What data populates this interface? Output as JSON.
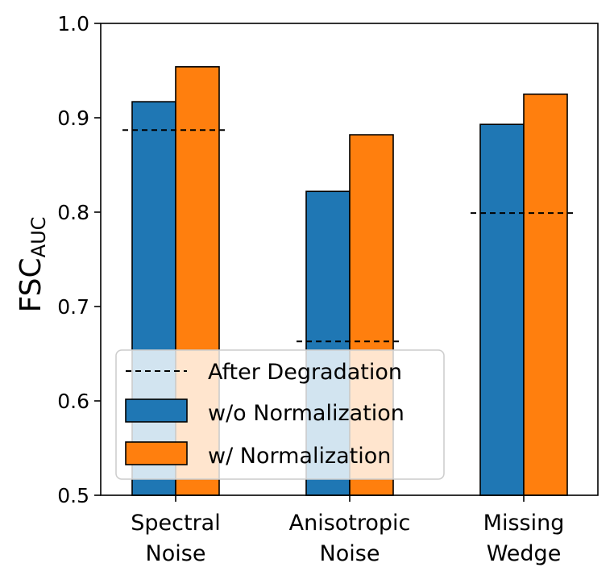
{
  "chart_data": {
    "type": "bar",
    "categories": [
      [
        "Spectral",
        "Noise"
      ],
      [
        "Anisotropic",
        "Noise"
      ],
      [
        "Missing",
        "Wedge"
      ]
    ],
    "series": [
      {
        "name": "w/o Normalization",
        "color": "#1f77b4",
        "values": [
          0.917,
          0.822,
          0.893
        ]
      },
      {
        "name": "w/ Normalization",
        "color": "#ff7f0e",
        "values": [
          0.954,
          0.882,
          0.925
        ]
      }
    ],
    "reference": {
      "name": "After Degradation",
      "style": "dashed",
      "color": "#000000",
      "values": [
        0.887,
        0.663,
        0.799
      ]
    },
    "ylabel": {
      "main": "FSC",
      "sub": "AUC"
    },
    "ylim": [
      0.5,
      1.0
    ],
    "yticks": [
      "0.5",
      "0.6",
      "0.7",
      "0.8",
      "0.9",
      "1.0"
    ],
    "legend": {
      "placement": "lower-left",
      "entries": [
        "After Degradation",
        "w/o Normalization",
        "w/ Normalization"
      ]
    }
  }
}
